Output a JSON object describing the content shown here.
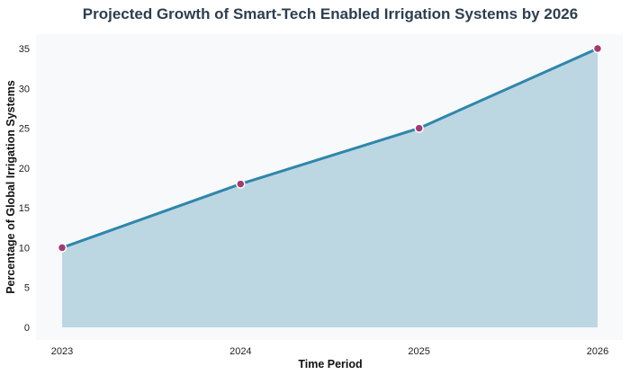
{
  "chart_data": {
    "type": "area",
    "title": "Projected Growth of Smart-Tech Enabled Irrigation Systems by 2026",
    "xlabel": "Time Period",
    "ylabel": "Percentage of Global Irrigation Systems",
    "categories": [
      "2023",
      "2024",
      "2025",
      "2026"
    ],
    "values": [
      10,
      18,
      25,
      35
    ],
    "ylim": [
      0,
      35
    ],
    "yticks": [
      0,
      5,
      10,
      15,
      20,
      25,
      30,
      35
    ],
    "grid": false,
    "legend": "none",
    "colors": {
      "line": "#2e86ab",
      "fill": "#bcd6e2",
      "marker": "#a23b72",
      "background": "#f8f9fb",
      "title": "#2c3e50"
    }
  }
}
